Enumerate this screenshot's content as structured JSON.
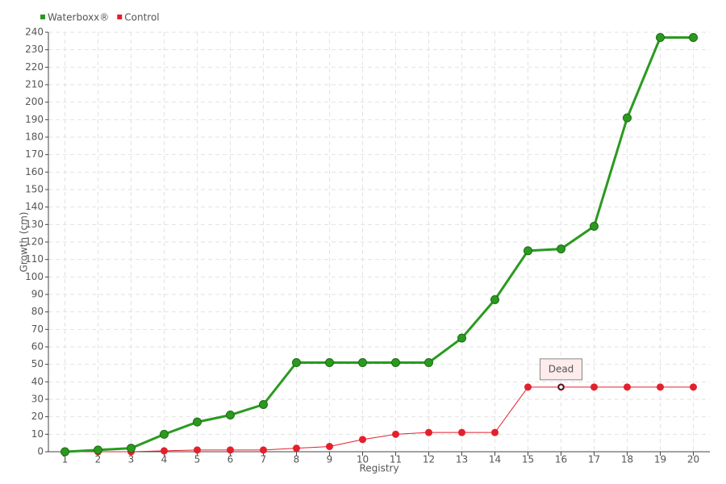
{
  "chart_data": {
    "type": "line",
    "x": [
      1,
      2,
      3,
      4,
      5,
      6,
      7,
      8,
      9,
      10,
      11,
      12,
      13,
      14,
      15,
      16,
      17,
      18,
      19,
      20
    ],
    "xlim": [
      0.5,
      20.5
    ],
    "xticks": [
      1,
      2,
      3,
      4,
      5,
      6,
      7,
      8,
      9,
      10,
      11,
      12,
      13,
      14,
      15,
      16,
      17,
      18,
      19,
      20
    ],
    "ylim": [
      0,
      240
    ],
    "yticks": [
      0,
      10,
      20,
      30,
      40,
      50,
      60,
      70,
      80,
      90,
      100,
      110,
      120,
      130,
      140,
      150,
      160,
      170,
      180,
      190,
      200,
      210,
      220,
      230,
      240
    ],
    "x_label": "Registry",
    "y_label": "Growth (cm)",
    "grid": true,
    "legend": "top-left",
    "series": [
      {
        "name": "Waterboxx®",
        "color": "#2a9a1f",
        "values": [
          0,
          1,
          2,
          10,
          17,
          21,
          27,
          51,
          51,
          51,
          51,
          51,
          65,
          87,
          115,
          116,
          129,
          191,
          237,
          237
        ]
      },
      {
        "name": "Control",
        "color": "#e3202b",
        "values": [
          0,
          0,
          0,
          0.5,
          1,
          1,
          1,
          2,
          3,
          7,
          10,
          11,
          11,
          11,
          37,
          37,
          37,
          37,
          37,
          37
        ]
      }
    ],
    "annotations": [
      {
        "text": "Dead",
        "x": 16,
        "y": 37
      }
    ]
  }
}
